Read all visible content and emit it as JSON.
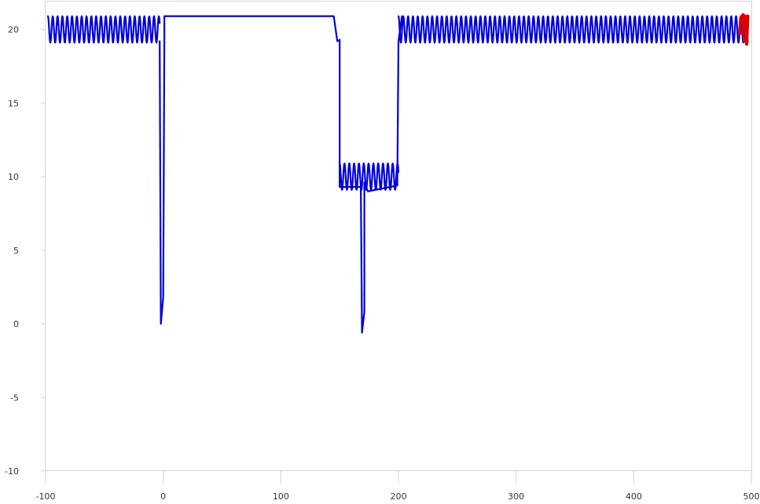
{
  "chart_data": {
    "type": "line",
    "title": "",
    "xlabel": "",
    "ylabel": "",
    "xlim": [
      -100,
      500
    ],
    "ylim": [
      -10,
      22
    ],
    "x_ticks": [
      {
        "value": -100,
        "label": "-100"
      },
      {
        "value": 0,
        "label": "0"
      },
      {
        "value": 100,
        "label": "100"
      },
      {
        "value": 200,
        "label": "200"
      },
      {
        "value": 300,
        "label": "300"
      },
      {
        "value": 400,
        "label": "400"
      },
      {
        "value": 500,
        "label": "500"
      }
    ],
    "y_ticks": [
      {
        "value": 20,
        "label": "20"
      },
      {
        "value": 15,
        "label": "15"
      },
      {
        "value": 10,
        "label": "10"
      },
      {
        "value": 5,
        "label": "5"
      },
      {
        "value": 0,
        "label": "0"
      },
      {
        "value": -5,
        "label": "-5"
      },
      {
        "value": -10,
        "label": "-10"
      }
    ],
    "grid": false,
    "legend": "none",
    "series": [
      {
        "color": "#0000dd",
        "segments": [
          {
            "x_start": -98,
            "x_end": -3,
            "center": 20,
            "amplitude": 0.9,
            "period": 4.1
          },
          {
            "x_start": 150,
            "x_end": 200,
            "center": 10,
            "amplitude": 0.9,
            "period": 4.1
          },
          {
            "x_start": 200,
            "x_end": 497,
            "center": 20,
            "amplitude": 0.9,
            "period": 4.1
          }
        ],
        "points": [
          [
            -3,
            19.2
          ],
          [
            -2,
            0.0
          ],
          [
            0,
            1.8
          ],
          [
            1,
            19.8
          ],
          [
            1,
            20.9
          ],
          [
            145,
            20.9
          ],
          [
            148,
            19.2
          ],
          [
            150,
            19.3
          ],
          [
            150,
            9.3
          ],
          [
            166,
            9.3
          ],
          [
            168,
            9.3
          ],
          [
            169,
            -0.6
          ],
          [
            171,
            0.8
          ],
          [
            171,
            9.6
          ],
          [
            174,
            9.0
          ],
          [
            199,
            9.4
          ],
          [
            200,
            19.2
          ],
          [
            203,
            20.9
          ]
        ]
      },
      {
        "color": "#dd0000",
        "points": [
          [
            490,
            19.7
          ],
          [
            491,
            20.8
          ],
          [
            493,
            21.0
          ],
          [
            494,
            19.2
          ],
          [
            495,
            19.6
          ],
          [
            495,
            20.9
          ],
          [
            496,
            20.7
          ],
          [
            496,
            19.0
          ],
          [
            497,
            20.9
          ]
        ]
      }
    ]
  }
}
